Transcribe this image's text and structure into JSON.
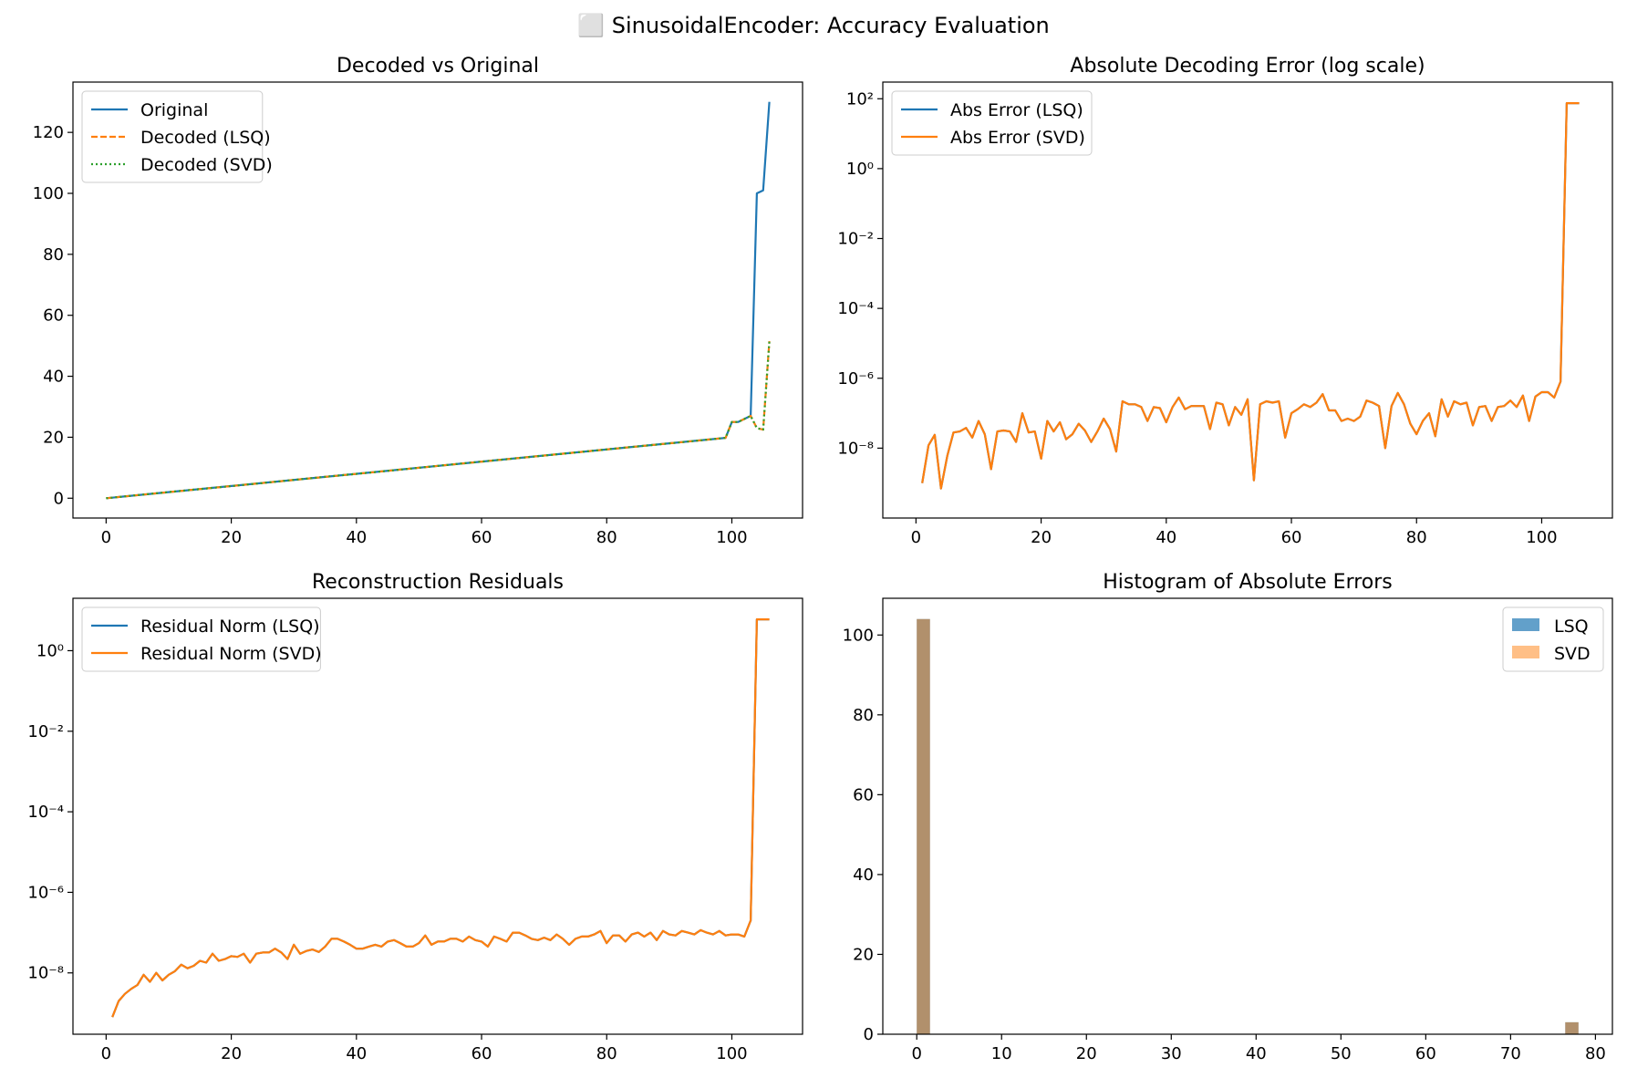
{
  "figure_title": "⬜ SinusoidalEncoder: Accuracy Evaluation",
  "chart_data": [
    {
      "type": "line",
      "title": "Decoded vs Original",
      "xlabel": "",
      "ylabel": "",
      "xlim": [
        -5.3,
        111.3
      ],
      "ylim": [
        -6.5,
        136.5
      ],
      "xticks": [
        0,
        20,
        40,
        60,
        80,
        100
      ],
      "yticks": [
        0,
        20,
        40,
        60,
        80,
        100,
        120
      ],
      "legend": "upper-left",
      "series": [
        {
          "name": "Original",
          "color": "#1f77b4",
          "dash": "solid",
          "x": [
            0,
            99,
            100,
            101,
            102,
            103,
            104,
            105,
            106
          ],
          "y": [
            0,
            19.8,
            25,
            25,
            26,
            27,
            100,
            101,
            130
          ]
        },
        {
          "name": "Decoded (LSQ)",
          "color": "#ff7f0e",
          "dash": "dashed",
          "x": [
            0,
            99,
            100,
            101,
            102,
            103,
            104,
            105,
            106
          ],
          "y": [
            0,
            19.8,
            25,
            25,
            26,
            27,
            23,
            22.5,
            51.5
          ]
        },
        {
          "name": "Decoded (SVD)",
          "color": "#2ca02c",
          "dash": "dotted",
          "x": [
            0,
            99,
            100,
            101,
            102,
            103,
            104,
            105,
            106
          ],
          "y": [
            0,
            19.8,
            25,
            25,
            26,
            27,
            23,
            22.5,
            51.5
          ]
        }
      ]
    },
    {
      "type": "line",
      "title": "Absolute Decoding Error (log scale)",
      "xlabel": "",
      "ylabel": "",
      "yscale": "log",
      "xlim": [
        -5.3,
        111.3
      ],
      "ylim": [
        1e-10,
        300
      ],
      "xticks": [
        0,
        20,
        40,
        60,
        80,
        100
      ],
      "yticks": [
        "1e2",
        "1e0",
        "1e-2",
        "1e-4",
        "1e-6",
        "1e-8"
      ],
      "legend": "upper-left",
      "series": [
        {
          "name": "Abs Error (LSQ)",
          "color": "#1f77b4",
          "x": [
            1,
            2,
            3,
            4,
            5,
            6,
            7,
            8,
            9,
            10,
            11,
            12,
            13,
            14,
            15,
            16,
            17,
            18,
            19,
            20,
            21,
            22,
            23,
            24,
            25,
            26,
            27,
            28,
            29,
            30,
            31,
            32,
            33,
            34,
            35,
            36,
            37,
            38,
            39,
            40,
            41,
            42,
            43,
            44,
            45,
            46,
            47,
            48,
            49,
            50,
            51,
            52,
            53,
            54,
            55,
            56,
            57,
            58,
            59,
            60,
            61,
            62,
            63,
            64,
            65,
            66,
            67,
            68,
            69,
            70,
            71,
            72,
            73,
            74,
            75,
            76,
            77,
            78,
            79,
            80,
            81,
            82,
            83,
            84,
            85,
            86,
            87,
            88,
            89,
            90,
            91,
            92,
            93,
            94,
            95,
            96,
            97,
            98,
            99,
            100,
            101,
            102,
            103,
            104,
            105,
            106
          ],
          "y": [
            1e-09,
            1.2e-08,
            2.4e-08,
            7e-10,
            6e-09,
            2.8e-08,
            3e-08,
            3.8e-08,
            2e-08,
            6e-08,
            2.5e-08,
            2.5e-09,
            3e-08,
            3.2e-08,
            3e-08,
            1.5e-08,
            1e-07,
            2.8e-08,
            3e-08,
            5e-09,
            6e-08,
            3e-08,
            5.5e-08,
            1.8e-08,
            2.5e-08,
            5e-08,
            3.2e-08,
            1.5e-08,
            3e-08,
            7e-08,
            3.5e-08,
            8e-09,
            2.2e-07,
            1.8e-07,
            1.8e-07,
            1.5e-07,
            6e-08,
            1.5e-07,
            1.4e-07,
            5.5e-08,
            1.5e-07,
            2.8e-07,
            1.3e-07,
            1.6e-07,
            1.6e-07,
            1.6e-07,
            3.5e-08,
            2e-07,
            1.8e-07,
            4.5e-08,
            1.5e-07,
            9e-08,
            2.5e-07,
            1.2e-09,
            1.8e-07,
            2.2e-07,
            2e-07,
            2.2e-07,
            2e-08,
            1e-07,
            1.3e-07,
            1.8e-07,
            1.5e-07,
            2e-07,
            3.5e-07,
            1.2e-07,
            1.2e-07,
            6e-08,
            7e-08,
            6e-08,
            8e-08,
            2.3e-07,
            2e-07,
            1.6e-07,
            1e-08,
            1.6e-07,
            3.8e-07,
            1.8e-07,
            5e-08,
            2.5e-08,
            6e-08,
            1e-07,
            2.2e-08,
            2.5e-07,
            8e-08,
            2.2e-07,
            1.8e-07,
            2e-07,
            4.5e-08,
            1.5e-07,
            1.6e-07,
            6e-08,
            1.5e-07,
            1.6e-07,
            2.3e-07,
            1.5e-07,
            3.2e-07,
            6e-08,
            3e-07,
            4e-07,
            4e-07,
            2.8e-07,
            8e-07,
            75,
            75,
            75
          ]
        },
        {
          "name": "Abs Error (SVD)",
          "color": "#ff7f0e",
          "x": [
            1,
            2,
            3,
            4,
            5,
            6,
            7,
            8,
            9,
            10,
            11,
            12,
            13,
            14,
            15,
            16,
            17,
            18,
            19,
            20,
            21,
            22,
            23,
            24,
            25,
            26,
            27,
            28,
            29,
            30,
            31,
            32,
            33,
            34,
            35,
            36,
            37,
            38,
            39,
            40,
            41,
            42,
            43,
            44,
            45,
            46,
            47,
            48,
            49,
            50,
            51,
            52,
            53,
            54,
            55,
            56,
            57,
            58,
            59,
            60,
            61,
            62,
            63,
            64,
            65,
            66,
            67,
            68,
            69,
            70,
            71,
            72,
            73,
            74,
            75,
            76,
            77,
            78,
            79,
            80,
            81,
            82,
            83,
            84,
            85,
            86,
            87,
            88,
            89,
            90,
            91,
            92,
            93,
            94,
            95,
            96,
            97,
            98,
            99,
            100,
            101,
            102,
            103,
            104,
            105,
            106
          ],
          "y": [
            1e-09,
            1.2e-08,
            2.4e-08,
            7e-10,
            6e-09,
            2.8e-08,
            3e-08,
            3.8e-08,
            2e-08,
            6e-08,
            2.5e-08,
            2.5e-09,
            3e-08,
            3.2e-08,
            3e-08,
            1.5e-08,
            1e-07,
            2.8e-08,
            3e-08,
            5e-09,
            6e-08,
            3e-08,
            5.5e-08,
            1.8e-08,
            2.5e-08,
            5e-08,
            3.2e-08,
            1.5e-08,
            3e-08,
            7e-08,
            3.5e-08,
            8e-09,
            2.2e-07,
            1.8e-07,
            1.8e-07,
            1.5e-07,
            6e-08,
            1.5e-07,
            1.4e-07,
            5.5e-08,
            1.5e-07,
            2.8e-07,
            1.3e-07,
            1.6e-07,
            1.6e-07,
            1.6e-07,
            3.5e-08,
            2e-07,
            1.8e-07,
            4.5e-08,
            1.5e-07,
            9e-08,
            2.5e-07,
            1.2e-09,
            1.8e-07,
            2.2e-07,
            2e-07,
            2.2e-07,
            2e-08,
            1e-07,
            1.3e-07,
            1.8e-07,
            1.5e-07,
            2e-07,
            3.5e-07,
            1.2e-07,
            1.2e-07,
            6e-08,
            7e-08,
            6e-08,
            8e-08,
            2.3e-07,
            2e-07,
            1.6e-07,
            1e-08,
            1.6e-07,
            3.8e-07,
            1.8e-07,
            5e-08,
            2.5e-08,
            6e-08,
            1e-07,
            2.2e-08,
            2.5e-07,
            8e-08,
            2.2e-07,
            1.8e-07,
            2e-07,
            4.5e-08,
            1.5e-07,
            1.6e-07,
            6e-08,
            1.5e-07,
            1.6e-07,
            2.3e-07,
            1.5e-07,
            3.2e-07,
            6e-08,
            3e-07,
            4e-07,
            4e-07,
            2.8e-07,
            8e-07,
            75,
            75,
            75
          ]
        }
      ]
    },
    {
      "type": "line",
      "title": "Reconstruction Residuals",
      "xlabel": "",
      "ylabel": "",
      "yscale": "log",
      "xlim": [
        -5.3,
        111.3
      ],
      "ylim": [
        3e-10,
        20
      ],
      "xticks": [
        0,
        20,
        40,
        60,
        80,
        100
      ],
      "yticks": [
        "1e0",
        "1e-2",
        "1e-4",
        "1e-6",
        "1e-8"
      ],
      "legend": "upper-left",
      "series": [
        {
          "name": "Residual Norm (LSQ)",
          "color": "#1f77b4",
          "x": [
            1,
            2,
            3,
            4,
            5,
            6,
            7,
            8,
            9,
            10,
            11,
            12,
            13,
            14,
            15,
            16,
            17,
            18,
            19,
            20,
            21,
            22,
            23,
            24,
            25,
            26,
            27,
            28,
            29,
            30,
            31,
            32,
            33,
            34,
            35,
            36,
            37,
            38,
            39,
            40,
            41,
            42,
            43,
            44,
            45,
            46,
            47,
            48,
            49,
            50,
            51,
            52,
            53,
            54,
            55,
            56,
            57,
            58,
            59,
            60,
            61,
            62,
            63,
            64,
            65,
            66,
            67,
            68,
            69,
            70,
            71,
            72,
            73,
            74,
            75,
            76,
            77,
            78,
            79,
            80,
            81,
            82,
            83,
            84,
            85,
            86,
            87,
            88,
            89,
            90,
            91,
            92,
            93,
            94,
            95,
            96,
            97,
            98,
            99,
            100,
            101,
            102,
            103,
            104,
            105,
            106
          ],
          "y": [
            8e-10,
            2e-09,
            3e-09,
            4e-09,
            5e-09,
            9e-09,
            6e-09,
            1e-08,
            6.5e-09,
            9e-09,
            1.1e-08,
            1.6e-08,
            1.3e-08,
            1.5e-08,
            2e-08,
            1.8e-08,
            3e-08,
            2e-08,
            2.2e-08,
            2.6e-08,
            2.5e-08,
            3e-08,
            1.8e-08,
            3e-08,
            3.2e-08,
            3.2e-08,
            4e-08,
            3.2e-08,
            2.2e-08,
            5e-08,
            3e-08,
            3.5e-08,
            3.8e-08,
            3.3e-08,
            4.5e-08,
            7e-08,
            7e-08,
            6e-08,
            5e-08,
            4e-08,
            4e-08,
            4.5e-08,
            5e-08,
            4.5e-08,
            6e-08,
            6.5e-08,
            5.5e-08,
            4.5e-08,
            4.5e-08,
            5.5e-08,
            8.5e-08,
            5e-08,
            6e-08,
            6e-08,
            7e-08,
            7e-08,
            6e-08,
            8e-08,
            6.5e-08,
            6e-08,
            4.5e-08,
            8e-08,
            7e-08,
            6e-08,
            1e-07,
            1e-07,
            8.5e-08,
            7e-08,
            6.5e-08,
            7.5e-08,
            6.5e-08,
            9e-08,
            7e-08,
            5e-08,
            7e-08,
            8e-08,
            8e-08,
            9e-08,
            1.1e-07,
            5.5e-08,
            8.5e-08,
            8.5e-08,
            6e-08,
            9e-08,
            1e-07,
            8e-08,
            1e-07,
            6.5e-08,
            1.1e-07,
            9e-08,
            8.5e-08,
            1.1e-07,
            1e-07,
            9e-08,
            1.15e-07,
            1e-07,
            9e-08,
            1.1e-07,
            8.5e-08,
            9e-08,
            9e-08,
            8e-08,
            2e-07,
            6,
            6,
            6
          ]
        },
        {
          "name": "Residual Norm (SVD)",
          "color": "#ff7f0e",
          "x": [
            1,
            2,
            3,
            4,
            5,
            6,
            7,
            8,
            9,
            10,
            11,
            12,
            13,
            14,
            15,
            16,
            17,
            18,
            19,
            20,
            21,
            22,
            23,
            24,
            25,
            26,
            27,
            28,
            29,
            30,
            31,
            32,
            33,
            34,
            35,
            36,
            37,
            38,
            39,
            40,
            41,
            42,
            43,
            44,
            45,
            46,
            47,
            48,
            49,
            50,
            51,
            52,
            53,
            54,
            55,
            56,
            57,
            58,
            59,
            60,
            61,
            62,
            63,
            64,
            65,
            66,
            67,
            68,
            69,
            70,
            71,
            72,
            73,
            74,
            75,
            76,
            77,
            78,
            79,
            80,
            81,
            82,
            83,
            84,
            85,
            86,
            87,
            88,
            89,
            90,
            91,
            92,
            93,
            94,
            95,
            96,
            97,
            98,
            99,
            100,
            101,
            102,
            103,
            104,
            105,
            106
          ],
          "y": [
            8e-10,
            2e-09,
            3e-09,
            4e-09,
            5e-09,
            9e-09,
            6e-09,
            1e-08,
            6.5e-09,
            9e-09,
            1.1e-08,
            1.6e-08,
            1.3e-08,
            1.5e-08,
            2e-08,
            1.8e-08,
            3e-08,
            2e-08,
            2.2e-08,
            2.6e-08,
            2.5e-08,
            3e-08,
            1.8e-08,
            3e-08,
            3.2e-08,
            3.2e-08,
            4e-08,
            3.2e-08,
            2.2e-08,
            5e-08,
            3e-08,
            3.5e-08,
            3.8e-08,
            3.3e-08,
            4.5e-08,
            7e-08,
            7e-08,
            6e-08,
            5e-08,
            4e-08,
            4e-08,
            4.5e-08,
            5e-08,
            4.5e-08,
            6e-08,
            6.5e-08,
            5.5e-08,
            4.5e-08,
            4.5e-08,
            5.5e-08,
            8.5e-08,
            5e-08,
            6e-08,
            6e-08,
            7e-08,
            7e-08,
            6e-08,
            8e-08,
            6.5e-08,
            6e-08,
            4.5e-08,
            8e-08,
            7e-08,
            6e-08,
            1e-07,
            1e-07,
            8.5e-08,
            7e-08,
            6.5e-08,
            7.5e-08,
            6.5e-08,
            9e-08,
            7e-08,
            5e-08,
            7e-08,
            8e-08,
            8e-08,
            9e-08,
            1.1e-07,
            5.5e-08,
            8.5e-08,
            8.5e-08,
            6e-08,
            9e-08,
            1e-07,
            8e-08,
            1e-07,
            6.5e-08,
            1.1e-07,
            9e-08,
            8.5e-08,
            1.1e-07,
            1e-07,
            9e-08,
            1.15e-07,
            1e-07,
            9e-08,
            1.1e-07,
            8.5e-08,
            9e-08,
            9e-08,
            8e-08,
            2e-07,
            6,
            6,
            6
          ]
        }
      ]
    },
    {
      "type": "bar",
      "title": "Histogram of Absolute Errors",
      "xlabel": "",
      "ylabel": "",
      "xlim": [
        -4,
        82
      ],
      "ylim": [
        0,
        109.2
      ],
      "xticks": [
        0,
        10,
        20,
        30,
        40,
        50,
        60,
        70,
        80
      ],
      "yticks": [
        0,
        20,
        40,
        60,
        80,
        100
      ],
      "legend": "upper-right",
      "bin_width": 1.56,
      "series": [
        {
          "name": "LSQ",
          "color": "#1f77b4",
          "opacity": 0.7,
          "bins": [
            {
              "x": 0,
              "count": 104
            },
            {
              "x": 76.44,
              "count": 3
            }
          ]
        },
        {
          "name": "SVD",
          "color": "#ff7f0e",
          "opacity": 0.5,
          "bins": [
            {
              "x": 0,
              "count": 104
            },
            {
              "x": 76.44,
              "count": 3
            }
          ]
        }
      ]
    }
  ]
}
